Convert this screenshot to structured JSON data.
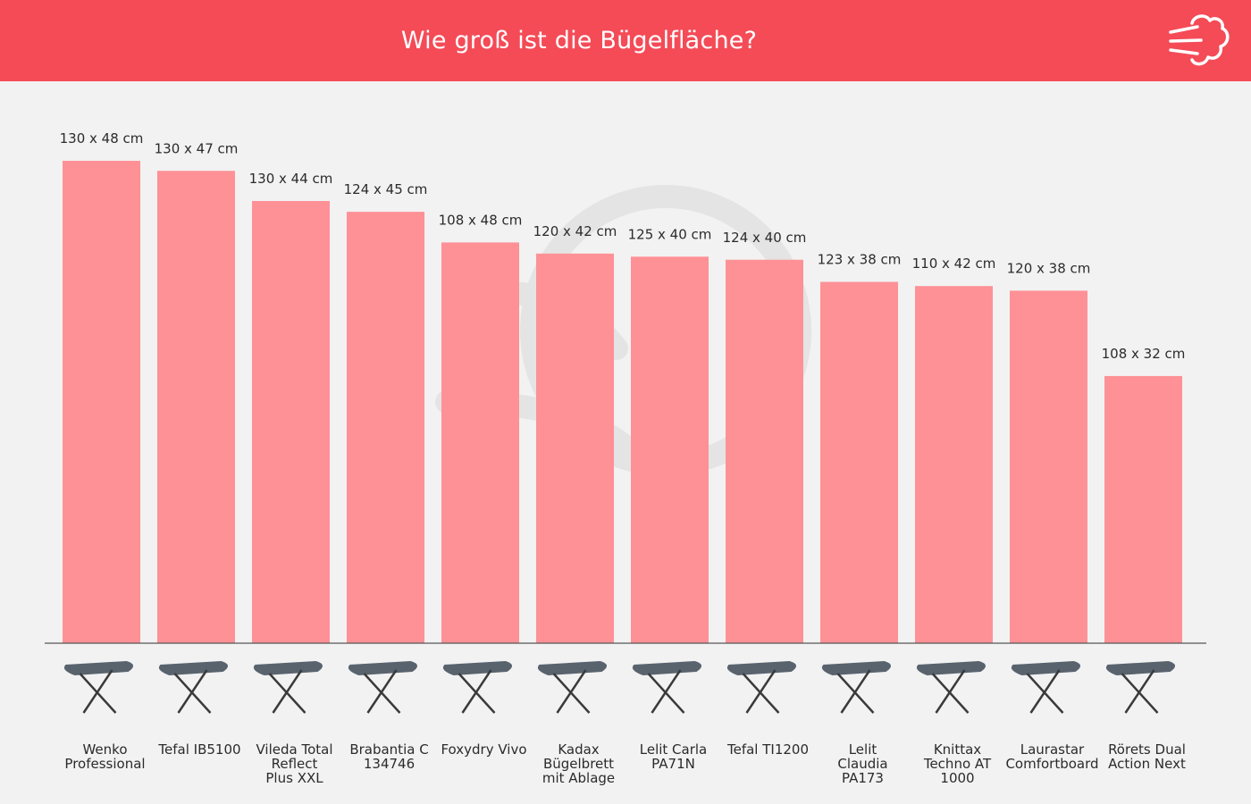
{
  "header": {
    "title": "Wie groß ist die Bügelfläche?",
    "icon": "steam-cloud-icon"
  },
  "colors": {
    "header_bg": "#f44b57",
    "bar": "#fe9196",
    "background": "#f2f2f2"
  },
  "chart_data": {
    "type": "bar",
    "title": "Wie groß ist die Bügelfläche?",
    "xlabel": "",
    "ylabel": "",
    "grid": false,
    "categories": [
      "Wenko Professional",
      "Tefal IB5100",
      "Vileda Total Reflect Plus XXL",
      "Brabantia C 134746",
      "Foxydry Vivo",
      "Kadax Bügelbrett mit Ablage",
      "Lelit Carla PA71N",
      "Tefal TI1200",
      "Lelit Claudia PA173",
      "Knittax Techno AT 1000",
      "Laurastar Comfortboard",
      "Rörets Dual Action Next"
    ],
    "label_lines": [
      [
        "Wenko",
        "Professional"
      ],
      [
        "Tefal IB5100"
      ],
      [
        "Vileda Total",
        "Reflect",
        "Plus XXL"
      ],
      [
        "Brabantia C",
        "134746"
      ],
      [
        "Foxydry Vivo"
      ],
      [
        "Kadax",
        "Bügelbrett",
        "mit Ablage"
      ],
      [
        "Lelit Carla",
        "PA71N"
      ],
      [
        "Tefal TI1200"
      ],
      [
        "Lelit",
        "Claudia",
        "PA173"
      ],
      [
        "Knittax",
        "Techno AT",
        "1000"
      ],
      [
        "Laurastar",
        "Comfortboard"
      ],
      [
        "Rörets Dual",
        "Action Next"
      ]
    ],
    "data_labels": [
      "130 x 48 cm",
      "130 x 47 cm",
      "130 x 44 cm",
      "124 x 45 cm",
      "108 x 48 cm",
      "120 x 42 cm",
      "125 x 40 cm",
      "124 x 40 cm",
      "123 x 38 cm",
      "110 x 42 cm",
      "120 x 38 cm",
      "108 x 32 cm"
    ],
    "values": [
      6240,
      6110,
      5720,
      5580,
      5184,
      5040,
      5000,
      4960,
      4674,
      4620,
      4560,
      3456
    ],
    "unit": "cm²",
    "ylim": [
      0,
      6240
    ]
  }
}
